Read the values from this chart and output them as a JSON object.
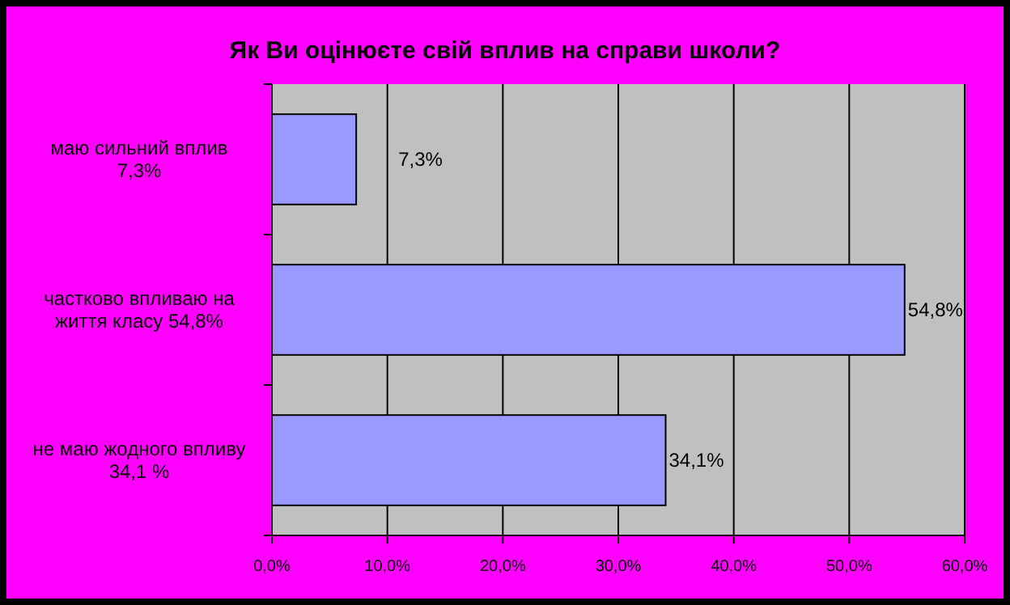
{
  "chart_data": {
    "type": "bar",
    "orientation": "horizontal",
    "title": "Як Ви оцінюєте свій вплив на справи школи?",
    "categories": [
      "маю сильний вплив 7,3%",
      "частково впливаю на життя класу 54,8%",
      "не маю жодного впливу 34,1 %"
    ],
    "values": [
      7.3,
      54.8,
      34.1
    ],
    "color": "#9999ff",
    "value_labels": [
      "7,3%",
      "54,8%",
      "34,1%"
    ],
    "xlim": [
      0,
      60
    ],
    "xticks": [
      {
        "value": 0,
        "label": "0,0%"
      },
      {
        "value": 10,
        "label": "10,0%"
      },
      {
        "value": 20,
        "label": "20,0%"
      },
      {
        "value": 30,
        "label": "30,0%"
      },
      {
        "value": 40,
        "label": "40,0%"
      },
      {
        "value": 50,
        "label": "50,0%"
      },
      {
        "value": 60,
        "label": "60,0%"
      }
    ],
    "grid": "x"
  }
}
